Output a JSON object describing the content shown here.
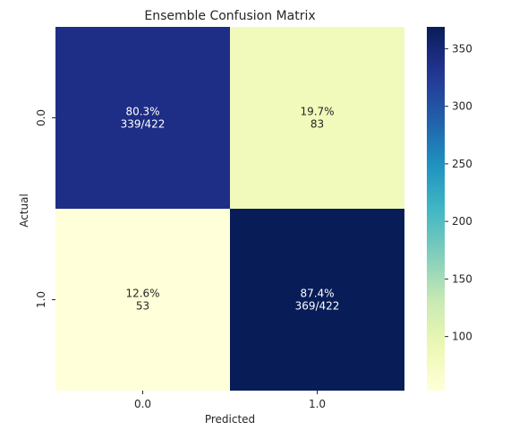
{
  "chart_data": {
    "type": "heatmap",
    "title": "Ensemble Confusion Matrix",
    "xlabel": "Predicted",
    "ylabel": "Actual",
    "x_categories": [
      "0.0",
      "1.0"
    ],
    "y_categories": [
      "0.0",
      "1.0"
    ],
    "values": [
      [
        339,
        83
      ],
      [
        53,
        369
      ]
    ],
    "cell_labels": [
      [
        [
          "80.3%",
          "339/422"
        ],
        [
          "19.7%",
          "83"
        ]
      ],
      [
        [
          "12.6%",
          "53"
        ],
        [
          "87.4%",
          "369/422"
        ]
      ]
    ],
    "colormap": "YlGnBu",
    "colorbar": {
      "range": [
        53,
        369
      ],
      "ticks": [
        100,
        150,
        200,
        250,
        300,
        350
      ]
    },
    "colors": {
      "low": "#ffffd9",
      "high": "#081d58"
    }
  }
}
